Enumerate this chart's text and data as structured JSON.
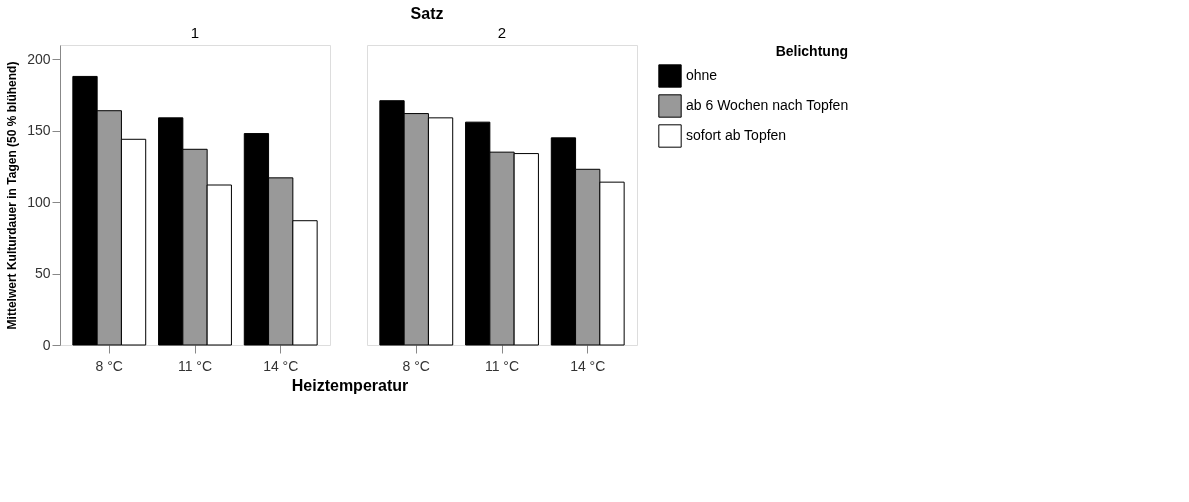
{
  "chart_data": [
    {
      "type": "bar",
      "title": "1",
      "annotations": [
        "Satz"
      ],
      "xlabel": "Heiztemperatur",
      "ylabel": "Mittelwert Kulturdauer in Tagen (50 % blühend)",
      "legend_title": "Belichtung",
      "legend": "right",
      "grid": false,
      "categories": [
        "8 °C",
        "11 °C",
        "14 °C"
      ],
      "ylim": [
        0,
        210
      ],
      "yticks": [
        0,
        50,
        100,
        150,
        200
      ],
      "series": [
        {
          "name": "ohne",
          "color": "#000000",
          "values": [
            188,
            159,
            148
          ]
        },
        {
          "name": "ab 6 Wochen nach Topfen",
          "color": "#999999",
          "values": [
            164,
            137,
            117
          ]
        },
        {
          "name": "sofort ab Topfen",
          "color": "#ffffff",
          "values": [
            144,
            112,
            87
          ]
        }
      ]
    },
    {
      "type": "bar",
      "title": "2",
      "tick_labels": "x",
      "legend": "right",
      "grid": false,
      "categories": [
        "8 °C",
        "11 °C",
        "14 °C"
      ],
      "ylim": [
        0,
        210
      ],
      "yticks": [
        0,
        50,
        100,
        150,
        200
      ],
      "series": [
        {
          "name": "ohne",
          "color": "#000000",
          "values": [
            171,
            156,
            145
          ]
        },
        {
          "name": "ab 6 Wochen nach Topfen",
          "color": "#999999",
          "values": [
            162,
            135,
            123
          ]
        },
        {
          "name": "sofort ab Topfen",
          "color": "#ffffff",
          "values": [
            159,
            134,
            114
          ]
        }
      ]
    }
  ]
}
